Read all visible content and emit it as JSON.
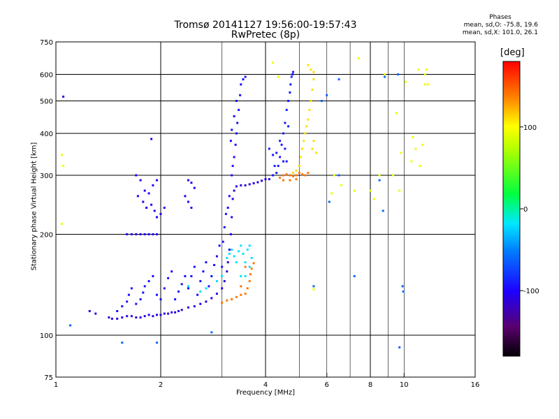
{
  "title": "Tromsø 20141127 19:56:00-19:57:43",
  "subtitle": "RwPretec (8p)",
  "phase_box": {
    "header": "Phases",
    "line_o": "mean, sd,O: -75.8, 19.6",
    "line_x": "mean, sd,X: 101.0, 26.1"
  },
  "colorbar": {
    "unit_label": "[deg]",
    "ticks": [
      100,
      0,
      -100
    ],
    "tick_labels": [
      "100",
      "0",
      "-100"
    ],
    "range": [
      -180,
      180
    ]
  },
  "chart_data": {
    "type": "scatter",
    "title": "Tromsø 20141127 19:56:00-19:57:43",
    "subtitle": "RwPretec (8p)",
    "xlabel": "Frequency [MHz]",
    "ylabel": "Stationary phase Virtual Height [km]",
    "xscale": "log",
    "yscale": "log",
    "xlim": [
      1,
      16
    ],
    "ylim": [
      75,
      750
    ],
    "xticks": [
      1,
      2,
      4,
      6,
      8,
      10,
      16
    ],
    "yticks": [
      75,
      100,
      200,
      300,
      400,
      500,
      600,
      750
    ],
    "x_major_grid": [
      2,
      4,
      8
    ],
    "x_minor_grid": [
      3,
      5,
      6,
      7,
      9,
      10
    ],
    "y_grid": [
      100,
      200,
      300,
      400,
      500,
      600
    ],
    "color_by": "phase",
    "series": [
      {
        "points": [
          [
            1.42,
            113
          ],
          [
            1.45,
            112
          ],
          [
            1.5,
            112
          ],
          [
            1.55,
            113
          ],
          [
            1.6,
            114
          ],
          [
            1.65,
            114
          ],
          [
            1.7,
            113
          ],
          [
            1.75,
            113
          ],
          [
            1.8,
            114
          ],
          [
            1.85,
            115
          ],
          [
            1.9,
            114
          ],
          [
            1.95,
            115
          ],
          [
            2.0,
            115
          ],
          [
            2.05,
            116
          ],
          [
            2.1,
            116
          ],
          [
            2.15,
            117
          ],
          [
            2.2,
            117
          ],
          [
            2.25,
            118
          ],
          [
            2.3,
            119
          ],
          [
            2.4,
            121
          ],
          [
            2.5,
            122
          ],
          [
            2.6,
            124
          ],
          [
            2.7,
            126
          ],
          [
            2.8,
            129
          ],
          [
            2.9,
            133
          ],
          [
            3.0,
            138
          ],
          [
            3.05,
            145
          ],
          [
            3.1,
            155
          ],
          [
            3.12,
            165
          ],
          [
            3.15,
            180
          ],
          [
            3.18,
            200
          ],
          [
            3.2,
            225
          ],
          [
            3.22,
            255
          ],
          [
            3.25,
            270
          ],
          [
            3.3,
            278
          ],
          [
            3.4,
            280
          ],
          [
            3.5,
            280
          ],
          [
            3.6,
            282
          ],
          [
            3.7,
            284
          ],
          [
            3.8,
            286
          ],
          [
            3.9,
            289
          ],
          [
            4.0,
            292
          ],
          [
            4.1,
            292
          ],
          [
            1.25,
            118
          ],
          [
            1.3,
            116
          ]
        ],
        "phase": -110
      },
      {
        "points": [
          [
            1.5,
            118
          ],
          [
            1.55,
            122
          ],
          [
            1.6,
            126
          ],
          [
            1.62,
            132
          ],
          [
            1.65,
            138
          ],
          [
            1.7,
            124
          ],
          [
            1.75,
            128
          ],
          [
            1.78,
            134
          ],
          [
            1.8,
            140
          ],
          [
            1.85,
            145
          ],
          [
            1.9,
            150
          ],
          [
            1.95,
            132
          ],
          [
            2.0,
            128
          ],
          [
            2.05,
            138
          ],
          [
            2.1,
            148
          ],
          [
            2.15,
            155
          ],
          [
            2.2,
            128
          ],
          [
            2.25,
            135
          ],
          [
            2.3,
            142
          ],
          [
            2.35,
            150
          ],
          [
            2.4,
            138
          ],
          [
            2.45,
            150
          ],
          [
            2.5,
            160
          ],
          [
            2.55,
            132
          ],
          [
            2.6,
            145
          ],
          [
            2.65,
            155
          ],
          [
            2.7,
            165
          ],
          [
            2.75,
            140
          ],
          [
            2.8,
            150
          ],
          [
            2.85,
            162
          ],
          [
            2.9,
            172
          ],
          [
            2.95,
            185
          ],
          [
            3.0,
            160
          ],
          [
            3.02,
            190
          ],
          [
            3.05,
            210
          ],
          [
            3.08,
            230
          ],
          [
            3.12,
            240
          ],
          [
            3.15,
            260
          ],
          [
            3.2,
            300
          ],
          [
            3.22,
            320
          ],
          [
            3.25,
            340
          ],
          [
            3.28,
            370
          ],
          [
            3.3,
            400
          ],
          [
            3.32,
            430
          ],
          [
            3.35,
            470
          ],
          [
            3.38,
            520
          ],
          [
            3.4,
            560
          ],
          [
            3.45,
            580
          ],
          [
            3.5,
            590
          ],
          [
            3.3,
            500
          ],
          [
            3.25,
            450
          ],
          [
            3.2,
            410
          ],
          [
            3.18,
            380
          ]
        ],
        "phase": -95
      },
      {
        "points": [
          [
            1.7,
            300
          ],
          [
            1.75,
            290
          ],
          [
            1.8,
            270
          ],
          [
            1.85,
            265
          ],
          [
            1.9,
            280
          ],
          [
            1.95,
            290
          ],
          [
            1.72,
            260
          ],
          [
            1.78,
            250
          ],
          [
            1.82,
            240
          ],
          [
            1.88,
            245
          ],
          [
            1.92,
            235
          ],
          [
            1.95,
            225
          ],
          [
            2.0,
            230
          ],
          [
            2.05,
            240
          ],
          [
            2.4,
            290
          ],
          [
            2.45,
            285
          ],
          [
            2.5,
            275
          ],
          [
            2.35,
            260
          ],
          [
            2.4,
            250
          ],
          [
            2.45,
            240
          ],
          [
            1.6,
            200
          ],
          [
            1.65,
            200
          ],
          [
            1.7,
            200
          ],
          [
            1.75,
            200
          ],
          [
            1.8,
            200
          ],
          [
            1.85,
            200
          ],
          [
            1.9,
            200
          ],
          [
            1.95,
            200
          ],
          [
            1.88,
            385
          ],
          [
            1.05,
            515
          ]
        ],
        "phase": -105
      },
      {
        "points": [
          [
            4.2,
            300
          ],
          [
            4.3,
            305
          ],
          [
            4.35,
            320
          ],
          [
            4.4,
            340
          ],
          [
            4.45,
            370
          ],
          [
            4.5,
            400
          ],
          [
            4.55,
            430
          ],
          [
            4.6,
            470
          ],
          [
            4.65,
            500
          ],
          [
            4.7,
            530
          ],
          [
            4.72,
            560
          ],
          [
            4.75,
            590
          ],
          [
            4.78,
            600
          ],
          [
            4.8,
            610
          ],
          [
            4.25,
            320
          ],
          [
            4.3,
            350
          ],
          [
            4.4,
            380
          ],
          [
            4.5,
            330
          ],
          [
            4.55,
            360
          ],
          [
            4.6,
            330
          ],
          [
            4.2,
            345
          ],
          [
            4.1,
            360
          ],
          [
            4.65,
            420
          ]
        ],
        "phase": -90
      },
      {
        "points": [
          [
            3.1,
            170
          ],
          [
            3.15,
            175
          ],
          [
            3.2,
            180
          ],
          [
            3.25,
            172
          ],
          [
            3.3,
            165
          ],
          [
            3.35,
            178
          ],
          [
            3.4,
            185
          ],
          [
            3.45,
            175
          ],
          [
            3.5,
            165
          ],
          [
            3.55,
            180
          ],
          [
            3.4,
            150
          ],
          [
            3.5,
            150
          ],
          [
            3.6,
            160
          ],
          [
            3.6,
            185
          ],
          [
            3.65,
            170
          ],
          [
            2.4,
            140
          ],
          [
            2.6,
            135
          ],
          [
            2.7,
            138
          ],
          [
            2.9,
            145
          ],
          [
            3.0,
            150
          ]
        ],
        "phase": -20
      },
      {
        "points": [
          [
            4.8,
            305
          ],
          [
            4.9,
            310
          ],
          [
            5.0,
            320
          ],
          [
            5.05,
            340
          ],
          [
            5.1,
            360
          ],
          [
            5.15,
            380
          ],
          [
            5.2,
            400
          ],
          [
            5.25,
            420
          ],
          [
            5.3,
            440
          ],
          [
            5.35,
            470
          ],
          [
            5.4,
            500
          ],
          [
            5.45,
            540
          ],
          [
            5.5,
            580
          ],
          [
            5.5,
            610
          ],
          [
            5.4,
            620
          ],
          [
            5.3,
            640
          ],
          [
            5.45,
            360
          ],
          [
            5.5,
            380
          ],
          [
            5.6,
            350
          ]
        ],
        "phase": 110
      },
      {
        "points": [
          [
            4.4,
            295
          ],
          [
            4.5,
            300
          ],
          [
            4.6,
            302
          ],
          [
            4.7,
            300
          ],
          [
            4.8,
            298
          ],
          [
            4.9,
            300
          ],
          [
            5.0,
            305
          ],
          [
            5.1,
            302
          ],
          [
            5.2,
            300
          ],
          [
            5.3,
            305
          ],
          [
            4.5,
            290
          ],
          [
            4.7,
            290
          ],
          [
            4.9,
            292
          ],
          [
            3.0,
            125
          ],
          [
            3.1,
            127
          ],
          [
            3.2,
            128
          ],
          [
            3.3,
            130
          ],
          [
            3.4,
            132
          ],
          [
            3.5,
            133
          ],
          [
            3.55,
            138
          ],
          [
            3.6,
            145
          ],
          [
            3.62,
            152
          ],
          [
            3.65,
            158
          ],
          [
            3.7,
            164
          ],
          [
            3.4,
            140
          ],
          [
            3.5,
            160
          ]
        ],
        "phase": 140
      },
      {
        "points": [
          [
            1.05,
            320
          ],
          [
            1.04,
            345
          ],
          [
            1.04,
            215
          ],
          [
            4.2,
            650
          ],
          [
            4.35,
            590
          ],
          [
            6.3,
            300
          ],
          [
            7.4,
            670
          ],
          [
            8.5,
            300
          ],
          [
            8.8,
            600
          ],
          [
            9.5,
            460
          ],
          [
            9.8,
            350
          ],
          [
            10.1,
            570
          ],
          [
            11.0,
            620
          ],
          [
            11.6,
            620
          ],
          [
            11.7,
            560
          ],
          [
            11.5,
            600
          ],
          [
            8.2,
            255
          ],
          [
            5.5,
            137
          ],
          [
            6.2,
            265
          ],
          [
            6.6,
            280
          ],
          [
            7.2,
            270
          ],
          [
            8.0,
            270
          ],
          [
            9.3,
            300
          ],
          [
            9.7,
            270
          ],
          [
            11.3,
            370
          ],
          [
            11.5,
            560
          ],
          [
            10.5,
            330
          ],
          [
            10.6,
            390
          ],
          [
            10.8,
            360
          ],
          [
            11.1,
            320
          ]
        ],
        "phase": 95
      },
      {
        "points": [
          [
            1.1,
            107
          ],
          [
            1.55,
            95
          ],
          [
            1.95,
            95
          ],
          [
            2.8,
            102
          ],
          [
            5.5,
            140
          ],
          [
            6.1,
            250
          ],
          [
            6.5,
            300
          ],
          [
            7.2,
            150
          ],
          [
            8.7,
            235
          ],
          [
            9.7,
            92
          ],
          [
            9.9,
            140
          ],
          [
            9.95,
            135
          ],
          [
            8.8,
            590
          ],
          [
            8.5,
            290
          ],
          [
            9.6,
            600
          ],
          [
            5.8,
            500
          ],
          [
            6.0,
            520
          ],
          [
            6.5,
            580
          ]
        ],
        "phase": -60
      }
    ]
  }
}
